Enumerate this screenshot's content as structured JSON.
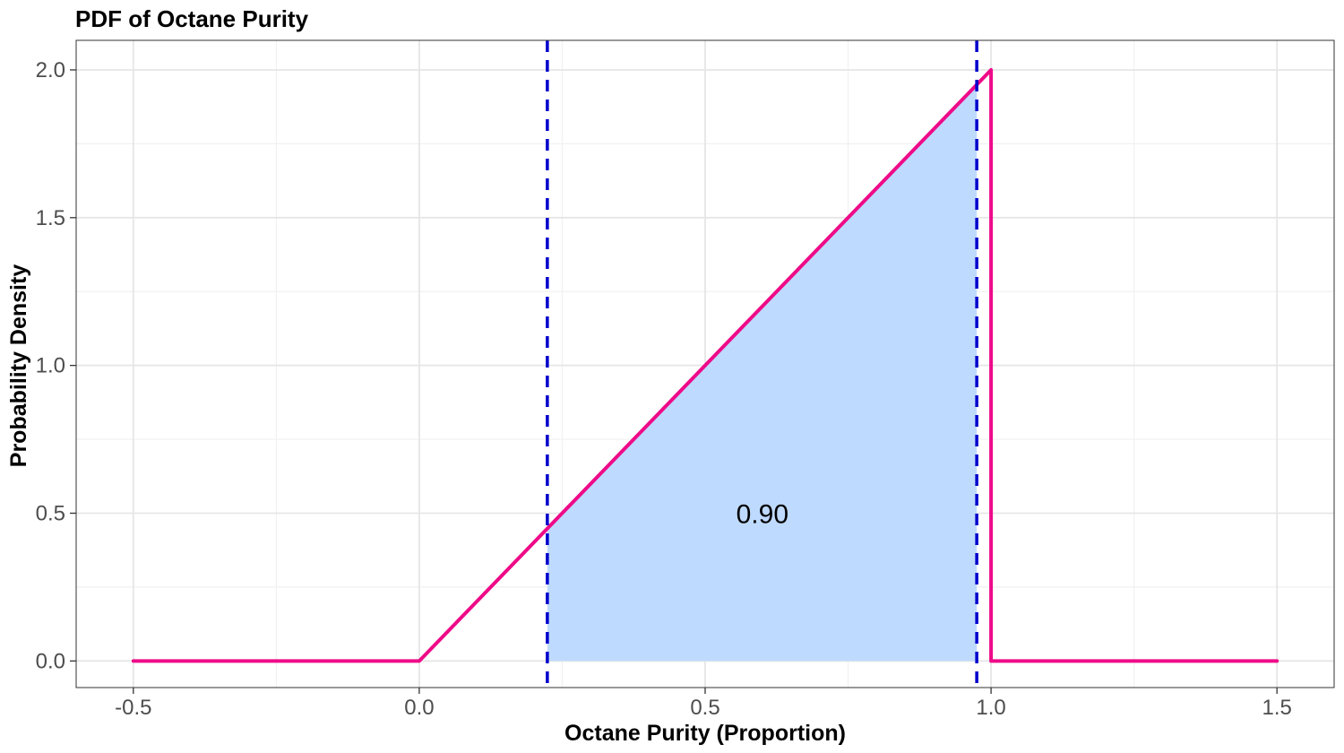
{
  "chart_data": {
    "type": "line",
    "title": "PDF of Octane Purity",
    "xlabel": "Octane Purity (Proportion)",
    "ylabel": "Probability Density",
    "xlim": [
      -0.6,
      1.6
    ],
    "ylim": [
      -0.09,
      2.1
    ],
    "x_ticks": [
      -0.5,
      0.0,
      0.5,
      1.0,
      1.5
    ],
    "x_tick_labels": [
      "-0.5",
      "0.0",
      "0.5",
      "1.0",
      "1.5"
    ],
    "y_ticks": [
      0.0,
      0.5,
      1.0,
      1.5,
      2.0
    ],
    "y_tick_labels": [
      "0.0",
      "0.5",
      "1.0",
      "1.5",
      "2.0"
    ],
    "grid": true,
    "series": [
      {
        "x": [
          -0.5,
          0.0,
          1.0,
          1.0,
          1.5
        ],
        "y": [
          0.0,
          0.0,
          2.0,
          0.0,
          0.0
        ],
        "color": "#ee0a88"
      }
    ],
    "shaded_region": {
      "x_from": 0.224,
      "x_to": 0.975,
      "color": "#bfdaff"
    },
    "vlines": [
      {
        "x": 0.224,
        "color": "#0000cc",
        "style": "dashed"
      },
      {
        "x": 0.975,
        "color": "#0000cc",
        "style": "dashed"
      }
    ],
    "annotations": [
      {
        "text": "0.90",
        "x": 0.6,
        "y": 0.5
      }
    ]
  }
}
